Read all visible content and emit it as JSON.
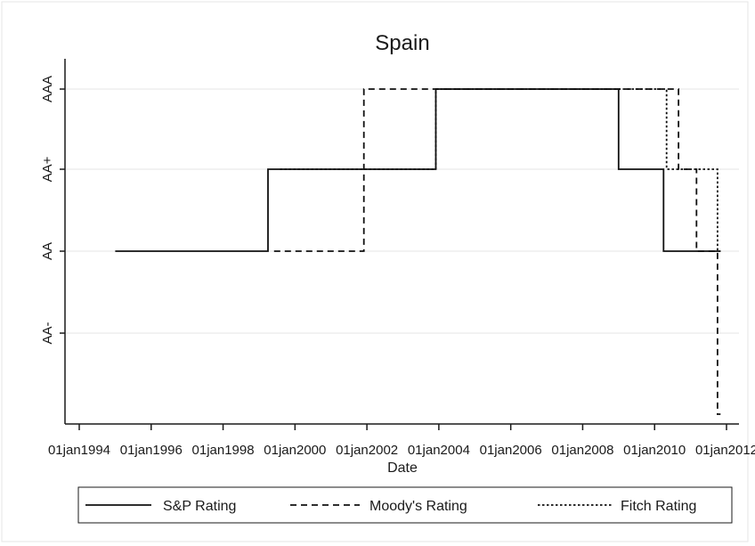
{
  "chart_data": {
    "type": "line",
    "title": "Spain",
    "xlabel": "Date",
    "ylabel": "",
    "x_ticks": [
      "01jan1994",
      "01jan1996",
      "01jan1998",
      "01jan2000",
      "01jan2002",
      "01jan2004",
      "01jan2006",
      "01jan2008",
      "01jan2010",
      "01jan2012"
    ],
    "y_ticks": [
      "AA-",
      "AA",
      "AA+",
      "AAA"
    ],
    "ylim": [
      "below AA-",
      "AAA"
    ],
    "grid": "horizontal",
    "legend_position": "bottom",
    "series": [
      {
        "name": "S&P Rating",
        "style": "solid",
        "steps": [
          {
            "date": "1995-01-01",
            "rating": "AA"
          },
          {
            "date": "1999-04-01",
            "rating": "AA+"
          },
          {
            "date": "2003-12-01",
            "rating": "AAA"
          },
          {
            "date": "2009-01-01",
            "rating": "AA+"
          },
          {
            "date": "2010-04-01",
            "rating": "AA"
          },
          {
            "date": "2011-11-01",
            "rating": "AA"
          }
        ]
      },
      {
        "name": "Moody's Rating",
        "style": "dashed",
        "steps": [
          {
            "date": "1999-06-01",
            "rating": "AA"
          },
          {
            "date": "2001-12-01",
            "rating": "AAA"
          },
          {
            "date": "2010-09-01",
            "rating": "AA+"
          },
          {
            "date": "2011-03-01",
            "rating": "AA"
          },
          {
            "date": "2011-10-01",
            "rating": "below AA-"
          },
          {
            "date": "2011-11-01",
            "rating": "below AA-"
          }
        ]
      },
      {
        "name": "Fitch Rating",
        "style": "dotted",
        "steps": [
          {
            "date": "1999-08-01",
            "rating": "AA+"
          },
          {
            "date": "2003-12-01",
            "rating": "AAA"
          },
          {
            "date": "2010-05-01",
            "rating": "AA+"
          },
          {
            "date": "2011-10-01",
            "rating": "AA"
          },
          {
            "date": "2011-11-01",
            "rating": "AA"
          }
        ]
      }
    ]
  }
}
